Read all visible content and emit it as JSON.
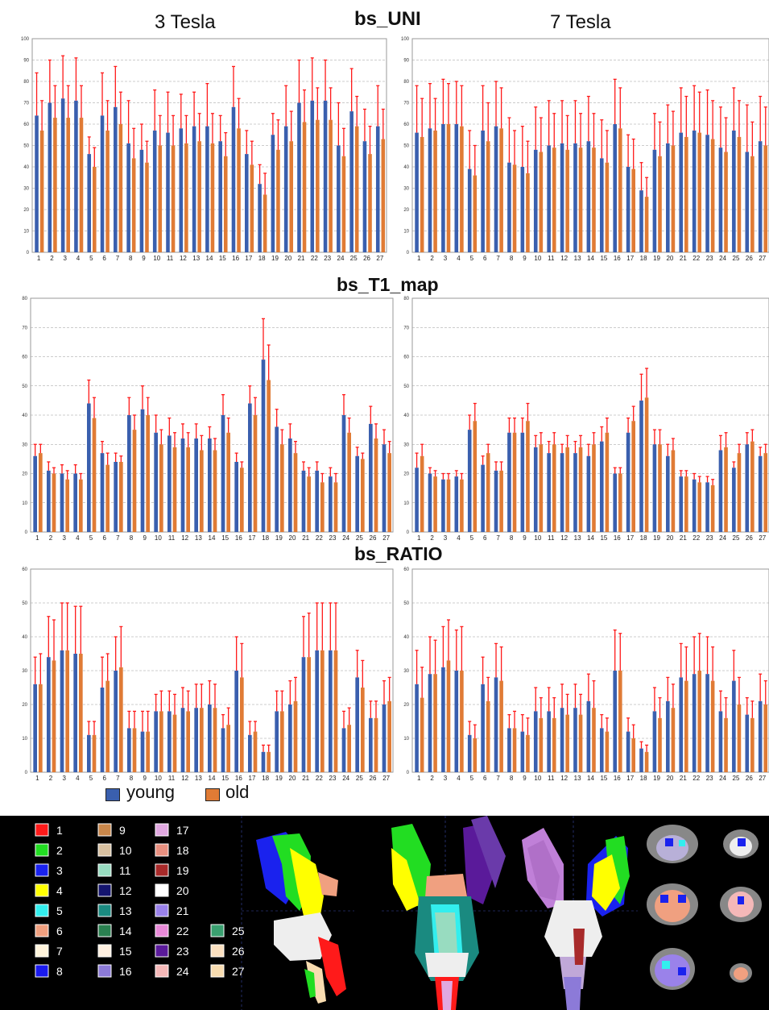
{
  "headers": {
    "left": "3 Tesla",
    "right": "7 Tesla",
    "uni": "bs_UNI",
    "t1": "bs_T1_map",
    "ratio": "bs_RATIO"
  },
  "legend": {
    "young": "young",
    "old": "old"
  },
  "colors": {
    "young": "#3a5fae",
    "old": "#e07b35",
    "error": "#ff1a1a",
    "grid": "#9a9a9a",
    "panel": "#000000"
  },
  "region_legend": {
    "items": [
      {
        "label": "1",
        "color": "#ff1a1a"
      },
      {
        "label": "2",
        "color": "#22dd22"
      },
      {
        "label": "3",
        "color": "#1a22ee"
      },
      {
        "label": "4",
        "color": "#ffff00"
      },
      {
        "label": "5",
        "color": "#33eeee"
      },
      {
        "label": "6",
        "color": "#f0a080"
      },
      {
        "label": "7",
        "color": "#fff4dc"
      },
      {
        "label": "8",
        "color": "#1a1aee"
      },
      {
        "label": "9",
        "color": "#c8864a"
      },
      {
        "label": "10",
        "color": "#d8c0a0"
      },
      {
        "label": "11",
        "color": "#98dcc0"
      },
      {
        "label": "12",
        "color": "#14146e"
      },
      {
        "label": "13",
        "color": "#1a8a80"
      },
      {
        "label": "14",
        "color": "#2a8050"
      },
      {
        "label": "15",
        "color": "#fff0e0"
      },
      {
        "label": "16",
        "color": "#8c7ad8"
      },
      {
        "label": "17",
        "color": "#e0a8e0"
      },
      {
        "label": "18",
        "color": "#e89080"
      },
      {
        "label": "19",
        "color": "#a82a2a"
      },
      {
        "label": "20",
        "color": "#ffffff"
      },
      {
        "label": "21",
        "color": "#9a82ea"
      },
      {
        "label": "22",
        "color": "#e88ad8"
      },
      {
        "label": "23",
        "color": "#5a1a9a"
      },
      {
        "label": "24",
        "color": "#f4b8b8"
      },
      {
        "label": "25",
        "color": "#3aa070"
      },
      {
        "label": "26",
        "color": "#fbe0c0"
      },
      {
        "label": "27",
        "color": "#f8dcb0"
      }
    ]
  },
  "chart_data": [
    {
      "id": "uni_3T",
      "type": "bar",
      "xlabel": "",
      "ylabel": "",
      "ylim": [
        0,
        100
      ],
      "yticks": [
        0,
        10,
        20,
        30,
        40,
        50,
        60,
        70,
        80,
        90,
        100
      ],
      "categories": [
        "1",
        "2",
        "3",
        "4",
        "5",
        "6",
        "7",
        "8",
        "9",
        "10",
        "11",
        "12",
        "13",
        "14",
        "15",
        "16",
        "17",
        "18",
        "19",
        "20",
        "21",
        "22",
        "23",
        "24",
        "25",
        "26",
        "27"
      ],
      "series": [
        {
          "values": [
            64,
            70,
            72,
            71,
            46,
            64,
            68,
            51,
            48,
            57,
            56,
            58,
            59,
            59,
            52,
            68,
            46,
            32,
            55,
            59,
            70,
            71,
            71,
            50,
            66,
            52,
            59
          ],
          "err": [
            20,
            20,
            20,
            20,
            8,
            20,
            19,
            20,
            12,
            19,
            19,
            16,
            16,
            20,
            12,
            19,
            11,
            9,
            10,
            19,
            20,
            20,
            19,
            20,
            20,
            15,
            19
          ]
        },
        {
          "values": [
            57,
            63,
            63,
            63,
            40,
            57,
            60,
            44,
            42,
            50,
            50,
            51,
            52,
            51,
            45,
            58,
            41,
            27,
            48,
            52,
            61,
            62,
            62,
            45,
            59,
            46,
            53
          ],
          "err": [
            14,
            15,
            15,
            15,
            9,
            14,
            15,
            14,
            10,
            14,
            14,
            13,
            13,
            14,
            11,
            14,
            11,
            10,
            14,
            14,
            15,
            15,
            15,
            13,
            14,
            13,
            14
          ]
        }
      ]
    },
    {
      "id": "uni_7T",
      "type": "bar",
      "xlabel": "",
      "ylabel": "",
      "ylim": [
        0,
        100
      ],
      "yticks": [
        0,
        10,
        20,
        30,
        40,
        50,
        60,
        70,
        80,
        90,
        100
      ],
      "categories": [
        "1",
        "2",
        "3",
        "4",
        "5",
        "6",
        "7",
        "8",
        "9",
        "10",
        "11",
        "12",
        "13",
        "14",
        "15",
        "16",
        "17",
        "18",
        "19",
        "20",
        "21",
        "22",
        "23",
        "24",
        "25",
        "26",
        "27"
      ],
      "series": [
        {
          "values": [
            56,
            58,
            60,
            60,
            39,
            57,
            59,
            42,
            40,
            48,
            50,
            51,
            51,
            52,
            44,
            60,
            40,
            29,
            48,
            51,
            56,
            57,
            55,
            49,
            57,
            47,
            52
          ],
          "err": [
            22,
            21,
            21,
            20,
            18,
            21,
            21,
            21,
            19,
            20,
            21,
            20,
            20,
            21,
            18,
            21,
            15,
            13,
            17,
            18,
            21,
            21,
            21,
            19,
            20,
            22,
            21
          ]
        },
        {
          "values": [
            54,
            57,
            60,
            59,
            36,
            52,
            58,
            41,
            37,
            47,
            49,
            48,
            49,
            49,
            42,
            58,
            39,
            26,
            45,
            50,
            54,
            56,
            53,
            47,
            54,
            45,
            50
          ],
          "err": [
            18,
            15,
            19,
            19,
            14,
            18,
            19,
            16,
            15,
            16,
            16,
            16,
            16,
            16,
            15,
            19,
            14,
            9,
            16,
            16,
            19,
            19,
            18,
            16,
            17,
            16,
            18
          ]
        }
      ]
    },
    {
      "id": "t1_3T",
      "type": "bar",
      "xlabel": "",
      "ylabel": "",
      "ylim": [
        0,
        80
      ],
      "yticks": [
        0,
        10,
        20,
        30,
        40,
        50,
        60,
        70,
        80
      ],
      "categories": [
        "1",
        "2",
        "3",
        "4",
        "5",
        "6",
        "7",
        "8",
        "9",
        "10",
        "11",
        "12",
        "13",
        "14",
        "15",
        "16",
        "17",
        "18",
        "19",
        "20",
        "21",
        "22",
        "23",
        "24",
        "25",
        "26",
        "27"
      ],
      "series": [
        {
          "values": [
            26,
            21,
            20,
            20,
            44,
            27,
            24,
            40,
            42,
            34,
            33,
            32,
            32,
            32,
            40,
            24,
            44,
            59,
            36,
            32,
            21,
            21,
            19,
            40,
            26,
            37,
            30
          ],
          "err": [
            4,
            3,
            3,
            3,
            8,
            4,
            3,
            6,
            8,
            6,
            6,
            5,
            5,
            4,
            7,
            3,
            6,
            14,
            6,
            5,
            3,
            3,
            3,
            7,
            3,
            6,
            5
          ]
        },
        {
          "values": [
            27,
            20,
            18,
            18,
            39,
            23,
            24,
            35,
            40,
            30,
            29,
            29,
            28,
            28,
            34,
            22,
            40,
            52,
            30,
            27,
            19,
            17,
            17,
            34,
            25,
            32,
            27
          ],
          "err": [
            3,
            2,
            3,
            2,
            7,
            4,
            2,
            5,
            6,
            5,
            5,
            5,
            5,
            4,
            5,
            2,
            6,
            12,
            5,
            4,
            3,
            3,
            3,
            5,
            2,
            5,
            4
          ]
        }
      ]
    },
    {
      "id": "t1_7T",
      "type": "bar",
      "xlabel": "",
      "ylabel": "",
      "ylim": [
        0,
        80
      ],
      "yticks": [
        0,
        10,
        20,
        30,
        40,
        50,
        60,
        70,
        80
      ],
      "categories": [
        "1",
        "2",
        "3",
        "4",
        "5",
        "6",
        "7",
        "8",
        "9",
        "10",
        "11",
        "12",
        "13",
        "14",
        "15",
        "16",
        "17",
        "18",
        "19",
        "20",
        "21",
        "22",
        "23",
        "24",
        "25",
        "26",
        "27"
      ],
      "series": [
        {
          "values": [
            22,
            20,
            18,
            19,
            35,
            23,
            21,
            34,
            34,
            29,
            27,
            27,
            27,
            26,
            31,
            20,
            34,
            45,
            30,
            26,
            19,
            18,
            17,
            28,
            22,
            30,
            26
          ],
          "err": [
            5,
            2,
            2,
            2,
            5,
            3,
            3,
            5,
            5,
            4,
            4,
            3,
            4,
            4,
            5,
            2,
            5,
            9,
            5,
            4,
            2,
            2,
            2,
            5,
            2,
            4,
            3
          ]
        },
        {
          "values": [
            26,
            19,
            18,
            18,
            38,
            27,
            21,
            34,
            38,
            30,
            30,
            29,
            29,
            30,
            34,
            20,
            38,
            46,
            30,
            28,
            19,
            17,
            16,
            29,
            27,
            31,
            27
          ],
          "err": [
            4,
            2,
            2,
            2,
            6,
            3,
            3,
            5,
            6,
            4,
            4,
            4,
            4,
            4,
            5,
            2,
            5,
            10,
            5,
            4,
            2,
            2,
            2,
            5,
            3,
            4,
            3
          ]
        }
      ]
    },
    {
      "id": "ratio_3T",
      "type": "bar",
      "xlabel": "",
      "ylabel": "",
      "ylim": [
        0,
        60
      ],
      "yticks": [
        0,
        10,
        20,
        30,
        40,
        50,
        60
      ],
      "categories": [
        "1",
        "2",
        "3",
        "4",
        "5",
        "6",
        "7",
        "8",
        "9",
        "10",
        "11",
        "12",
        "13",
        "14",
        "15",
        "16",
        "17",
        "18",
        "19",
        "20",
        "21",
        "22",
        "23",
        "24",
        "25",
        "26",
        "27"
      ],
      "series": [
        {
          "values": [
            26,
            34,
            36,
            35,
            11,
            25,
            30,
            13,
            12,
            18,
            18,
            19,
            19,
            20,
            13,
            30,
            11,
            6,
            18,
            20,
            34,
            36,
            36,
            13,
            28,
            16,
            20
          ],
          "err": [
            8,
            12,
            14,
            14,
            4,
            9,
            10,
            5,
            6,
            5,
            6,
            6,
            7,
            7,
            4,
            10,
            4,
            2,
            6,
            7,
            12,
            14,
            14,
            5,
            8,
            5,
            7
          ]
        },
        {
          "values": [
            26,
            33,
            36,
            35,
            11,
            27,
            31,
            13,
            12,
            18,
            17,
            18,
            19,
            19,
            14,
            28,
            12,
            6,
            18,
            21,
            34,
            36,
            36,
            14,
            25,
            16,
            21
          ],
          "err": [
            9,
            12,
            14,
            14,
            4,
            8,
            12,
            5,
            6,
            6,
            6,
            6,
            7,
            7,
            5,
            10,
            3,
            2,
            6,
            7,
            13,
            14,
            14,
            5,
            8,
            5,
            7
          ]
        }
      ]
    },
    {
      "id": "ratio_7T",
      "type": "bar",
      "xlabel": "",
      "ylabel": "",
      "ylim": [
        0,
        60
      ],
      "yticks": [
        0,
        10,
        20,
        30,
        40,
        50,
        60
      ],
      "categories": [
        "1",
        "2",
        "3",
        "4",
        "5",
        "6",
        "7",
        "8",
        "9",
        "10",
        "11",
        "12",
        "13",
        "14",
        "15",
        "16",
        "17",
        "18",
        "19",
        "20",
        "21",
        "22",
        "23",
        "24",
        "25",
        "26",
        "27"
      ],
      "series": [
        {
          "values": [
            26,
            29,
            31,
            30,
            11,
            26,
            28,
            13,
            12,
            18,
            18,
            19,
            19,
            21,
            13,
            30,
            12,
            7,
            18,
            21,
            28,
            29,
            29,
            18,
            27,
            17,
            21
          ],
          "err": [
            10,
            11,
            12,
            12,
            4,
            8,
            10,
            4,
            5,
            7,
            7,
            7,
            7,
            8,
            4,
            12,
            4,
            2,
            7,
            7,
            10,
            11,
            11,
            6,
            9,
            5,
            8
          ]
        },
        {
          "values": [
            22,
            29,
            33,
            30,
            10,
            21,
            27,
            13,
            11,
            16,
            16,
            17,
            17,
            19,
            12,
            30,
            10,
            6,
            16,
            19,
            27,
            30,
            27,
            16,
            20,
            16,
            20
          ],
          "err": [
            9,
            10,
            12,
            13,
            4,
            7,
            10,
            5,
            5,
            6,
            6,
            6,
            6,
            8,
            4,
            11,
            4,
            2,
            6,
            7,
            10,
            11,
            10,
            6,
            8,
            5,
            7
          ]
        }
      ]
    }
  ]
}
